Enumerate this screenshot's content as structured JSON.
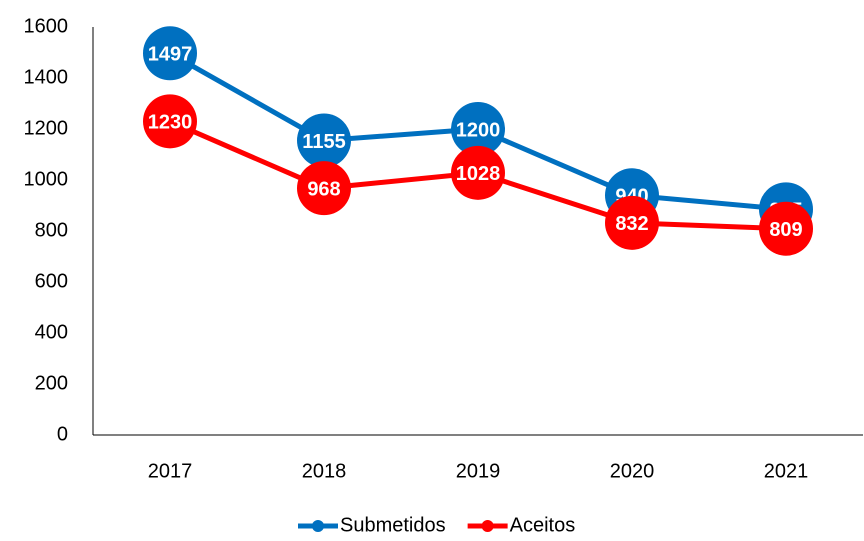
{
  "chart_data": {
    "type": "line",
    "categories": [
      "2017",
      "2018",
      "2019",
      "2020",
      "2021"
    ],
    "series": [
      {
        "name": "Submetidos",
        "color": "#0070c0",
        "values": [
          1497,
          1155,
          1200,
          940,
          885
        ]
      },
      {
        "name": "Aceitos",
        "color": "#ff0000",
        "values": [
          1230,
          968,
          1028,
          832,
          809
        ]
      }
    ],
    "ylim": [
      0,
      1600
    ],
    "yticks": [
      0,
      200,
      400,
      600,
      800,
      1000,
      1200,
      1400,
      1600
    ],
    "grid": false,
    "legend": "bottom"
  }
}
